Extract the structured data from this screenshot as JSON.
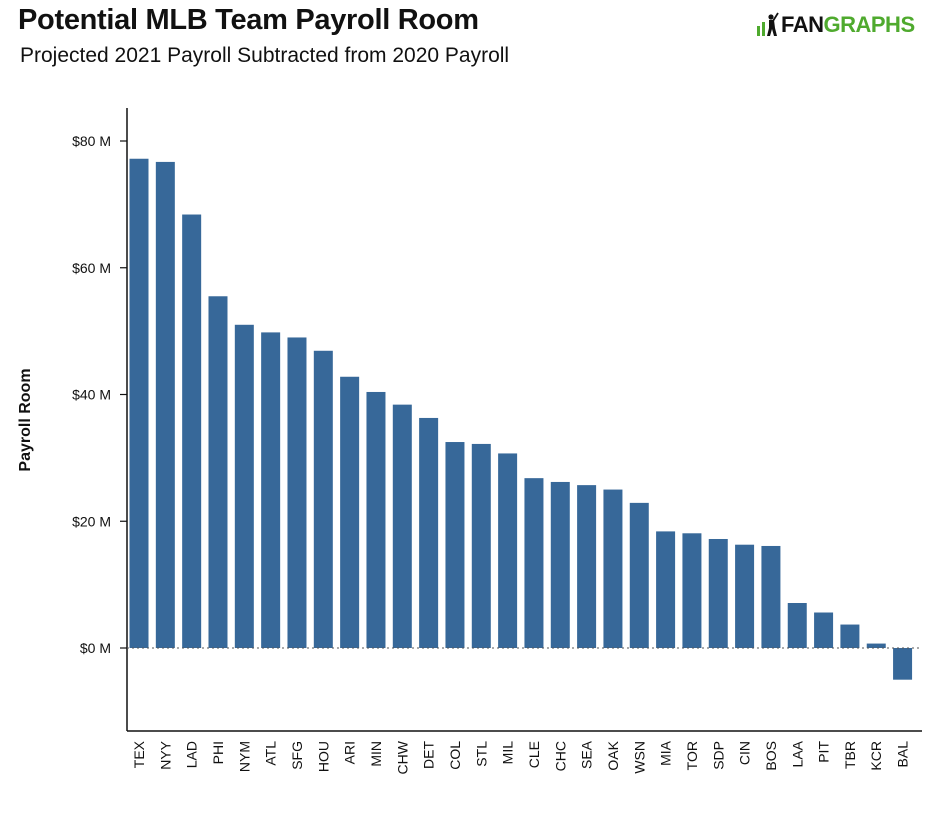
{
  "header": {
    "title": "Potential MLB Team Payroll Room",
    "subtitle": "Projected 2021 Payroll Subtracted from 2020 Payroll"
  },
  "logo": {
    "part1": "FAN",
    "part2": "GRAPHS",
    "icon": "batter-icon",
    "accent_color": "#4faa2e"
  },
  "chart_data": {
    "type": "bar",
    "title": "Potential MLB Team Payroll Room",
    "subtitle": "Projected 2021 Payroll Subtracted from 2020 Payroll",
    "xlabel": "",
    "ylabel": "Payroll Room",
    "unit": "$ millions",
    "ylim": [
      -13,
      85
    ],
    "yticks": [
      0,
      20,
      40,
      60,
      80
    ],
    "ytick_labels": [
      "$0 M",
      "$20 M",
      "$40 M",
      "$60 M",
      "$80 M"
    ],
    "bar_color": "#376899",
    "zero_line": "dotted",
    "grid": false,
    "categories": [
      "TEX",
      "NYY",
      "LAD",
      "PHI",
      "NYM",
      "ATL",
      "SFG",
      "HOU",
      "ARI",
      "MIN",
      "CHW",
      "DET",
      "COL",
      "STL",
      "MIL",
      "CLE",
      "CHC",
      "SEA",
      "OAK",
      "WSN",
      "MIA",
      "TOR",
      "SDP",
      "CIN",
      "BOS",
      "LAA",
      "PIT",
      "TBR",
      "KCR",
      "BAL"
    ],
    "values": [
      77.2,
      76.7,
      68.4,
      55.5,
      51.0,
      49.8,
      49.0,
      46.9,
      42.8,
      40.4,
      38.4,
      36.3,
      32.5,
      32.2,
      30.7,
      26.8,
      26.2,
      25.7,
      25.0,
      22.9,
      18.4,
      18.1,
      17.2,
      16.3,
      16.1,
      7.1,
      5.6,
      3.7,
      0.7,
      -5.0
    ]
  }
}
